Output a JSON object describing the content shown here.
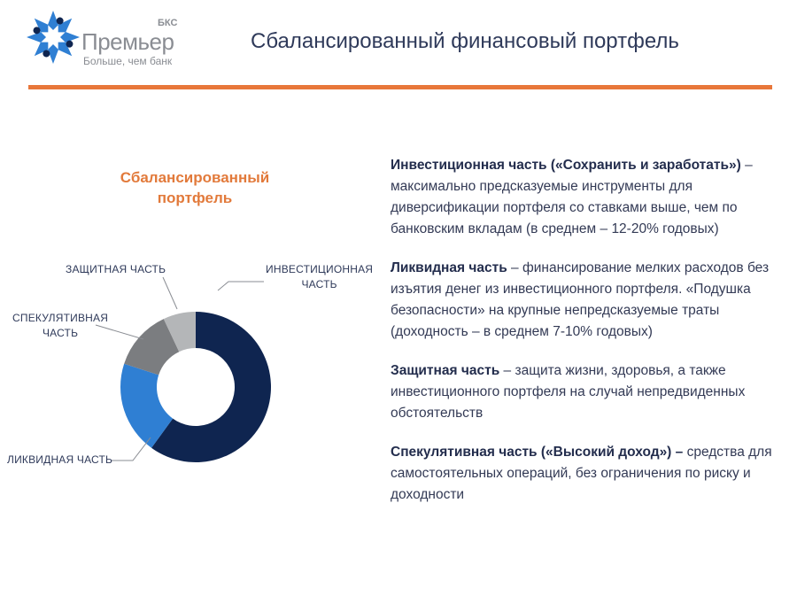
{
  "header": {
    "logo_name": "Премьер",
    "logo_bks": "БКС",
    "logo_tagline": "Больше, чем банк",
    "title": "Сбалансированный финансовый портфель"
  },
  "colors": {
    "accent_orange": "#e8773a",
    "navy": "#0f2550",
    "blue": "#2f7fd3",
    "dark_gray": "#7b7d80",
    "light_gray": "#b4b6b8"
  },
  "chart_data": {
    "type": "pie",
    "title": "Сбалансированный портфель",
    "donut": true,
    "slices": [
      {
        "label": "ИНВЕСТИЦИОННАЯ ЧАСТЬ",
        "value": 60,
        "color": "#0f2550"
      },
      {
        "label": "ЛИКВИДНАЯ ЧАСТЬ",
        "value": 20,
        "color": "#2f7fd3"
      },
      {
        "label": "СПЕКУЛЯТИВНАЯ ЧАСТЬ",
        "value": 13,
        "color": "#7b7d80"
      },
      {
        "label": "ЗАЩИТНАЯ ЧАСТЬ",
        "value": 7,
        "color": "#b4b6b8"
      }
    ],
    "slice_labels": {
      "invest_line1": "ИНВЕСТИЦИОННАЯ",
      "invest_line2": "ЧАСТЬ",
      "liquid": "ЛИКВИДНАЯ ЧАСТЬ",
      "spec_line1": "СПЕКУЛЯТИВНАЯ",
      "spec_line2": "ЧАСТЬ",
      "protect": "ЗАЩИТНАЯ ЧАСТЬ"
    }
  },
  "descriptions": [
    {
      "head": "Инвестиционная часть («Сохранить и заработать»)",
      "body": " – максимально предсказуемые инструменты для диверсификации портфеля со ставками выше, чем по банковским вкладам (в среднем – 12-20% годовых)"
    },
    {
      "head": "Ликвидная часть",
      "body": " – финансирование мелких расходов без изъятия денег из инвестиционного портфеля. «Подушка безопасности» на крупные непредсказуемые траты (доходность – в среднем 7-10% годовых)"
    },
    {
      "head": "Защитная часть",
      "body": " – защита жизни, здоровья, а также инвестиционного портфеля на случай непредвиденных обстоятельств"
    },
    {
      "head": "Спекулятивная часть («Высокий доход») –",
      "body": " средства для самостоятельных операций, без ограничения по риску и доходности"
    }
  ]
}
